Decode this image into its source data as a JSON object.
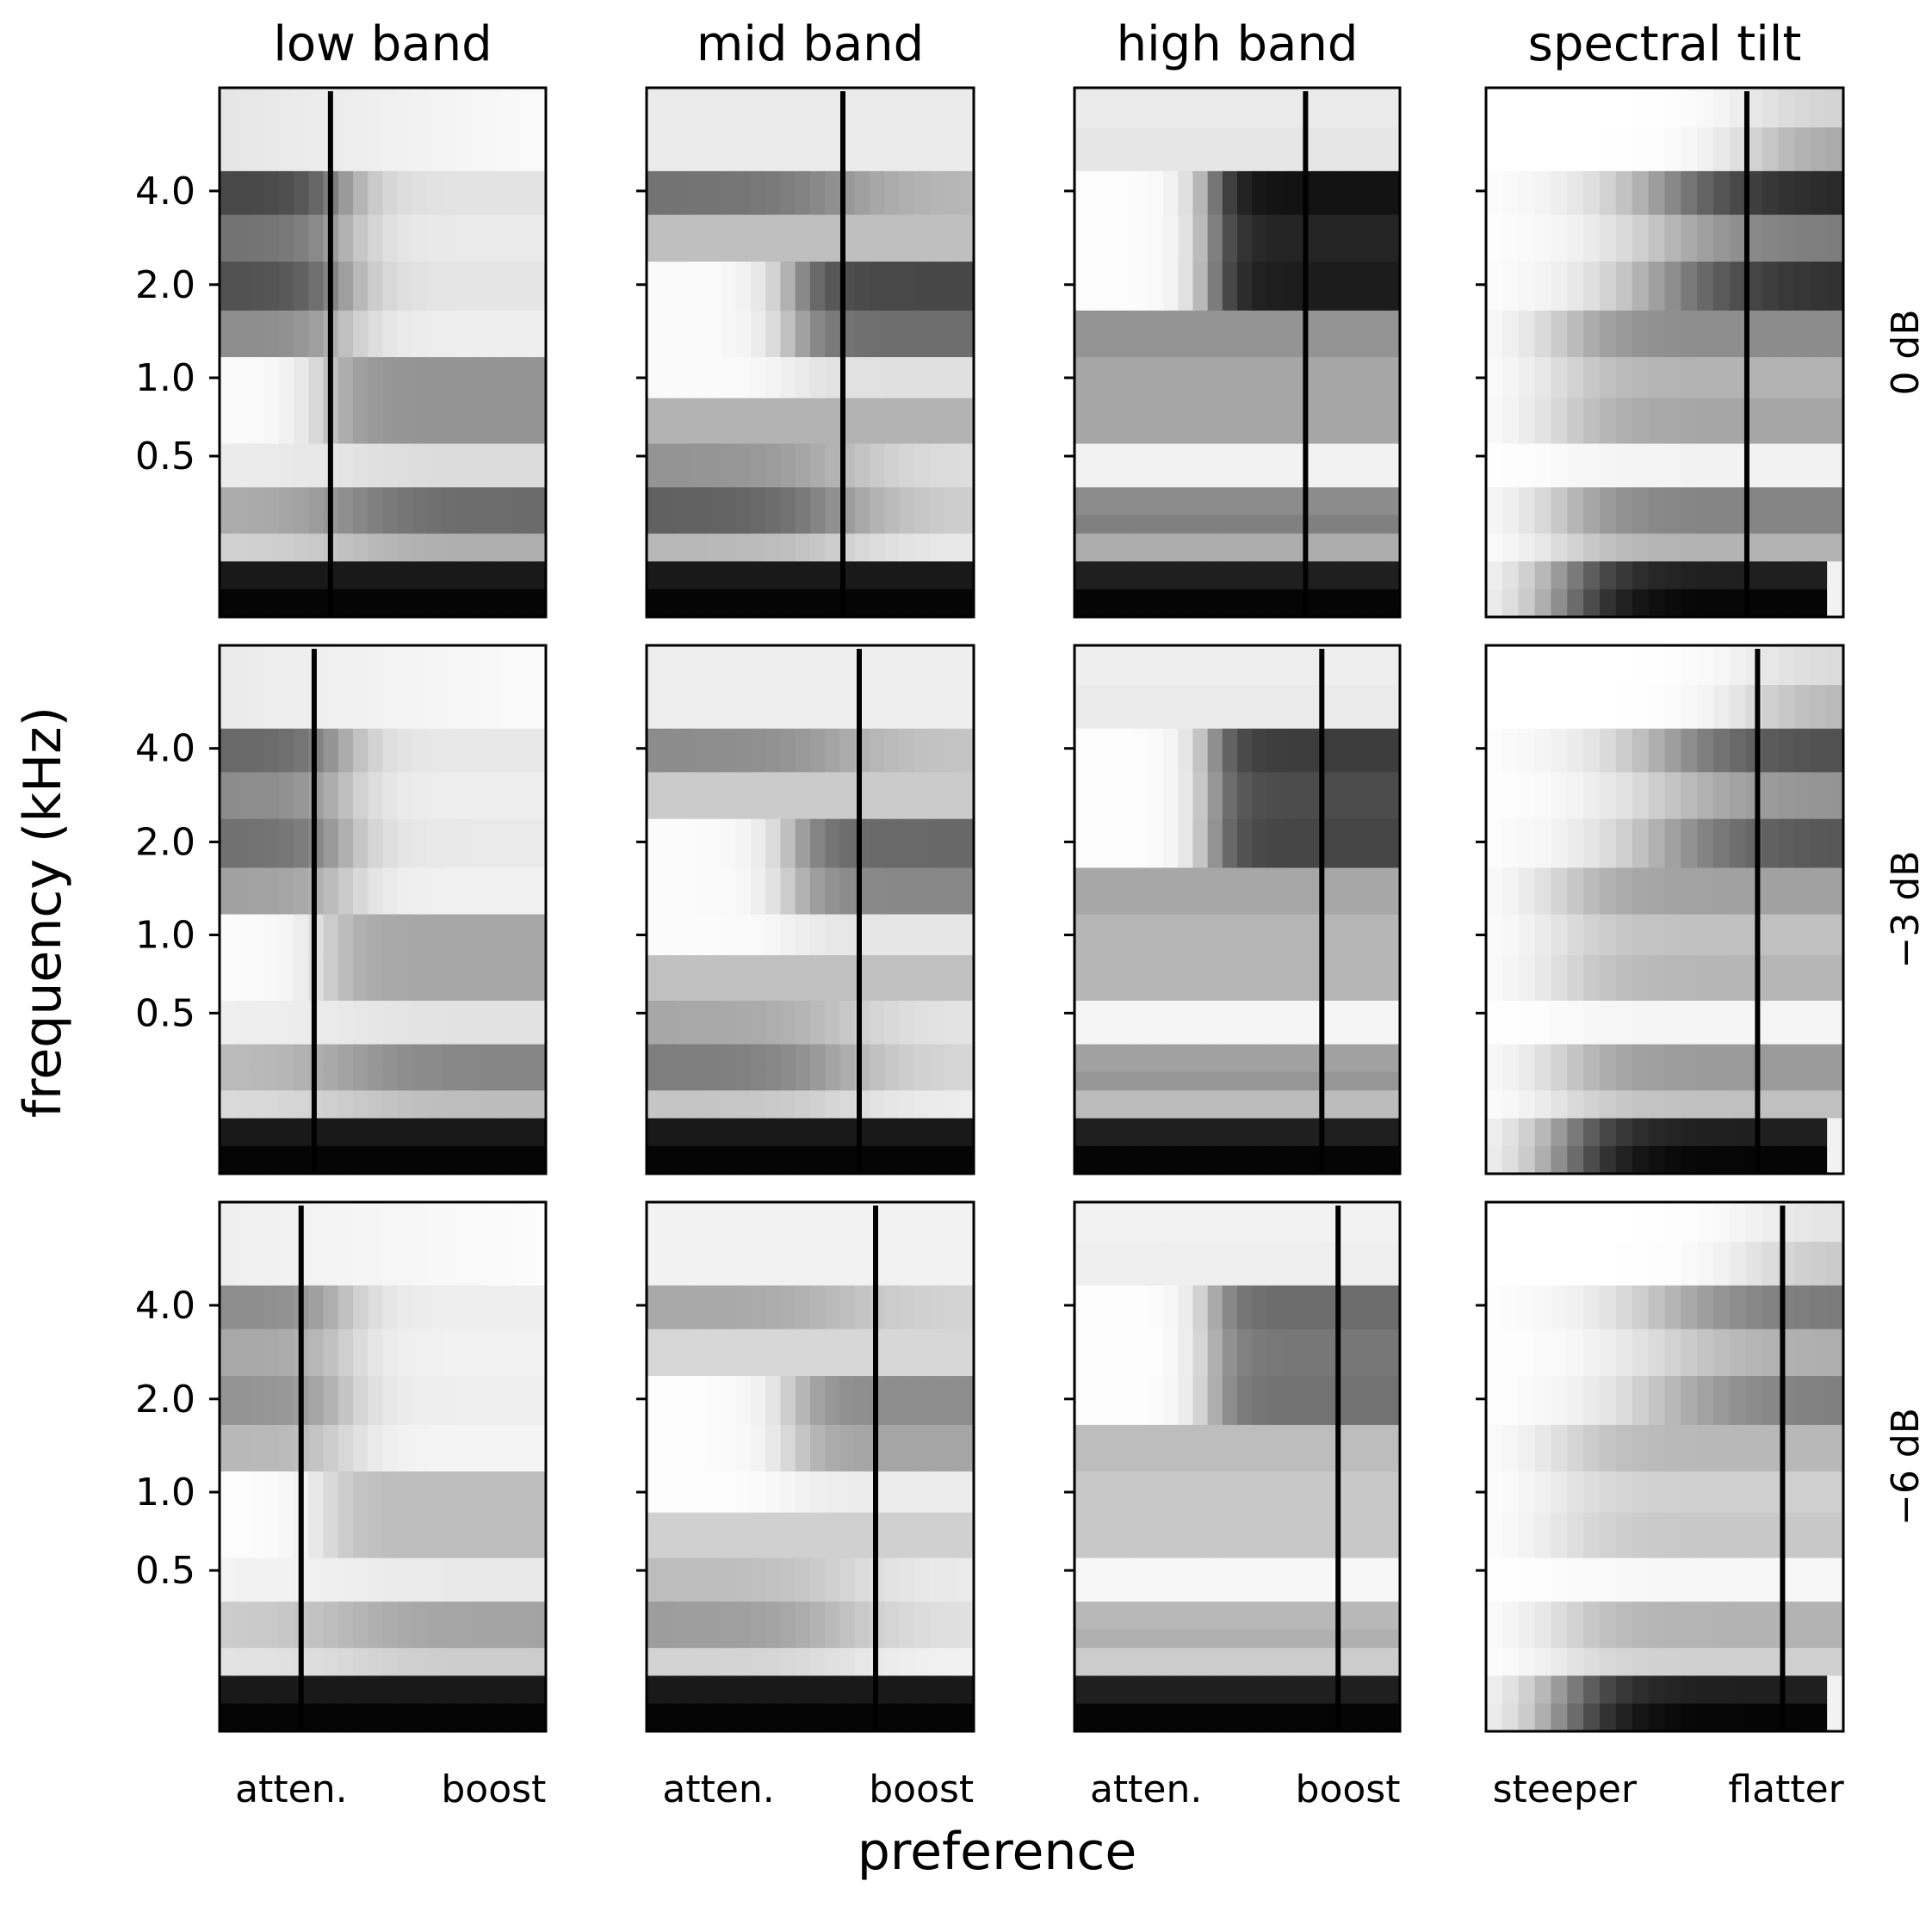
{
  "chart_data": {
    "type": "heatmap",
    "column_titles": [
      "low band",
      "mid band",
      "high band",
      "spectral tilt"
    ],
    "row_labels": [
      "0 dB",
      "−3 dB",
      "−6 dB"
    ],
    "ylabel": "frequency (kHz)",
    "xlabel": "preference",
    "y_ticks": [
      "4.0",
      "2.0",
      "1.0",
      "0.5"
    ],
    "x_tick_labels": [
      [
        "atten.",
        "boost"
      ],
      [
        "atten.",
        "boost"
      ],
      [
        "atten.",
        "boost"
      ],
      [
        "steeper",
        "flatter"
      ]
    ],
    "colormap": "grayscale (white = low, black = high)",
    "colors": {
      "background": "#ffffff",
      "ink": "#000000"
    },
    "preference_marker": [
      [
        0.34,
        0.6,
        0.71,
        0.73
      ],
      [
        0.29,
        0.65,
        0.76,
        0.76
      ],
      [
        0.25,
        0.7,
        0.81,
        0.83
      ]
    ]
  }
}
